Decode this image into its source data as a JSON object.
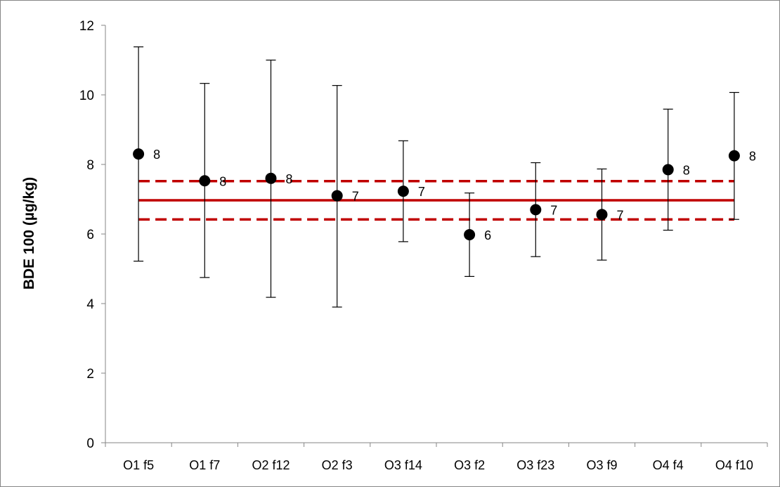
{
  "chart_data": {
    "type": "scatter",
    "title": "",
    "xlabel": "",
    "ylabel": "BDE 100 (µg/kg)",
    "ylim": [
      0,
      12
    ],
    "y_ticks": [
      0,
      2,
      4,
      6,
      8,
      10,
      12
    ],
    "grid": false,
    "legend": "none",
    "categories": [
      "O1 f5",
      "O1 f7",
      "O2 f12",
      "O2 f3",
      "O3 f14",
      "O3 f2",
      "O3 f23",
      "O3 f9",
      "O4  f4",
      "O4 f10"
    ],
    "points": [
      {
        "category": "O1 f5",
        "value": 8.3,
        "error_low": 5.22,
        "error_high": 11.38,
        "label": "8"
      },
      {
        "category": "O1 f7",
        "value": 7.53,
        "error_low": 4.75,
        "error_high": 10.33,
        "label": "8"
      },
      {
        "category": "O2 f12",
        "value": 7.6,
        "error_low": 4.18,
        "error_high": 11.0,
        "label": "8"
      },
      {
        "category": "O2 f3",
        "value": 7.1,
        "error_low": 3.9,
        "error_high": 10.27,
        "label": "7"
      },
      {
        "category": "O3 f14",
        "value": 7.23,
        "error_low": 5.78,
        "error_high": 8.68,
        "label": "7"
      },
      {
        "category": "O3 f2",
        "value": 5.98,
        "error_low": 4.78,
        "error_high": 7.18,
        "label": "6"
      },
      {
        "category": "O3 f23",
        "value": 6.7,
        "error_low": 5.35,
        "error_high": 8.05,
        "label": "7"
      },
      {
        "category": "O3 f9",
        "value": 6.56,
        "error_low": 5.25,
        "error_high": 7.87,
        "label": "7"
      },
      {
        "category": "O4  f4",
        "value": 7.85,
        "error_low": 6.11,
        "error_high": 9.59,
        "label": "8"
      },
      {
        "category": "O4 f10",
        "value": 8.25,
        "error_low": 6.42,
        "error_high": 10.07,
        "label": "8"
      }
    ],
    "reference_lines": [
      {
        "value": 6.97,
        "style": "solid"
      },
      {
        "value": 7.52,
        "style": "dashed"
      },
      {
        "value": 6.42,
        "style": "dashed"
      }
    ],
    "colors": {
      "marker": "#000000",
      "error_bar": "#000000",
      "reference": "#c00000",
      "axis": "#868686",
      "border": "#868686"
    }
  }
}
